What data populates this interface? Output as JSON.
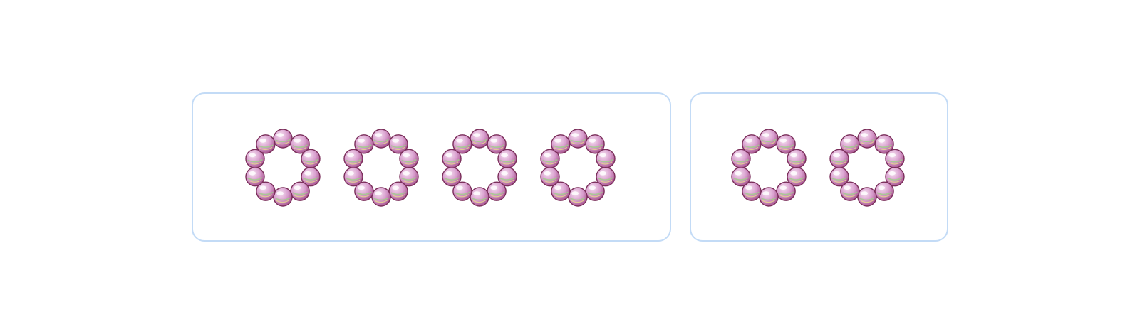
{
  "colors": {
    "border": "#c3dbf6",
    "bead_light": "#f6e2f1",
    "bead_mid": "#d9a0cf",
    "bead_dark": "#a8558f",
    "bead_outline": "#7a2e5a",
    "bead_swirl_green": "#9fcf8a",
    "bead_swirl_yellow": "#e9dc8c"
  },
  "groups": [
    {
      "id": "left-group",
      "ring_count": 4,
      "beads_per_ring": 10
    },
    {
      "id": "right-group",
      "ring_count": 2,
      "beads_per_ring": 10
    }
  ]
}
